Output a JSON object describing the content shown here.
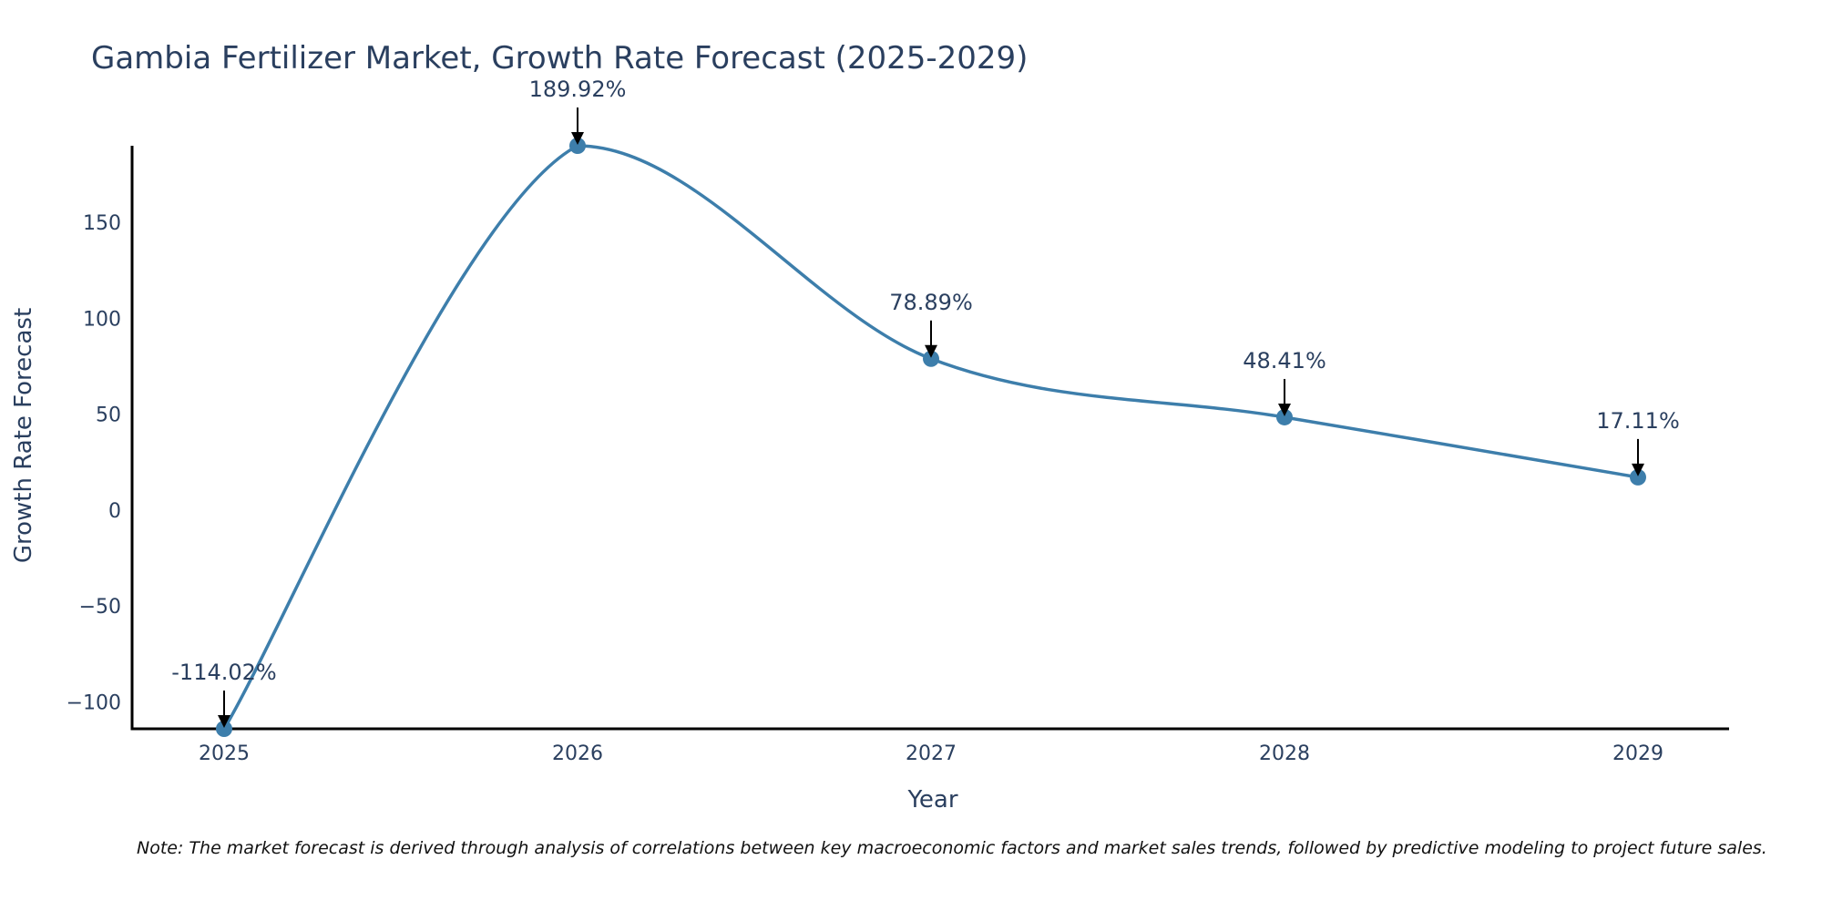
{
  "chart_data": {
    "type": "line",
    "title": "Gambia Fertilizer Market, Growth Rate Forecast (2025-2029)",
    "xlabel": "Year",
    "ylabel": "Growth Rate Forecast",
    "categories": [
      "2025",
      "2026",
      "2027",
      "2028",
      "2029"
    ],
    "series": [
      {
        "name": "Growth Rate Forecast",
        "values": [
          -114.02,
          189.92,
          78.89,
          48.41,
          17.11
        ],
        "color": "#3d7eab",
        "line_shape": "spline"
      }
    ],
    "data_labels": [
      "-114.02%",
      "189.92%",
      "78.89%",
      "48.41%",
      "17.11%"
    ],
    "yticks": [
      -100,
      -50,
      0,
      50,
      100,
      150
    ],
    "ytick_labels": [
      "−100",
      "−50",
      "0",
      "50",
      "100",
      "150"
    ],
    "ylim": [
      -114.02,
      189.92
    ],
    "grid": false,
    "note": "Note: The market forecast is derived through analysis of correlations between key macroeconomic factors and market sales trends, followed by predictive modeling to project future sales."
  }
}
